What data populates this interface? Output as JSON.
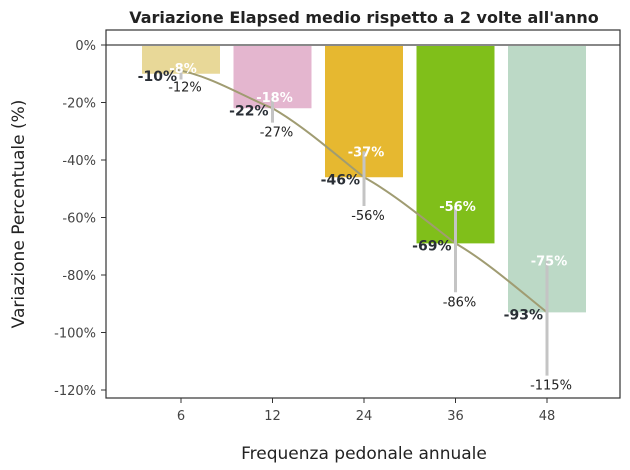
{
  "chart_data": {
    "type": "bar",
    "title": "Variazione Elapsed medio rispetto a 2 volte all'anno",
    "xlabel": "Frequenza pedonale annuale",
    "ylabel": "Variazione Percentuale (%)",
    "categories": [
      "6",
      "12",
      "24",
      "36",
      "48"
    ],
    "values": [
      -10,
      -22,
      -46,
      -69,
      -93
    ],
    "value_labels": [
      "-10%",
      "-22%",
      "-46%",
      "-69%",
      "-93%"
    ],
    "upper": [
      -8,
      -18,
      -37,
      -56,
      -75
    ],
    "upper_labels": [
      "-8%",
      "-18%",
      "-37%",
      "-56%",
      "-75%"
    ],
    "lower": [
      -12,
      -27,
      -56,
      -86,
      -115
    ],
    "lower_labels": [
      "-12%",
      "-27%",
      "-56%",
      "-86%",
      "-115%"
    ],
    "colors": [
      "#e8d898",
      "#e4b6cf",
      "#e6b830",
      "#80bf1a",
      "#bcd9c6"
    ],
    "trend_color": "#a09c72",
    "ylim": [
      -124,
      5
    ],
    "yticks": [
      0,
      -20,
      -40,
      -60,
      -80,
      -100,
      -120
    ],
    "ytick_labels": [
      "0%",
      "-20%",
      "-40%",
      "-60%",
      "-80%",
      "-100%",
      "-120%"
    ],
    "grid": false
  }
}
